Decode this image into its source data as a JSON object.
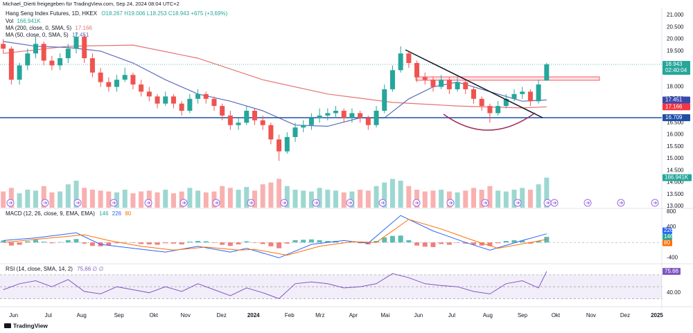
{
  "credit": "Michael_Dierti freigegeben für TradingView.com, Sep 24, 2024 08:04 UTC+2",
  "branding": "TradingView",
  "chart_data": [
    {
      "type": "candlestick",
      "title": "Hang Seng Index Futures, 1D, HKEX",
      "ohlc_text": "O18.267 H19.006 L18.253 C18.943 +675 (+3,69%)",
      "legend": [
        {
          "name": "Vol",
          "value": "166,941K"
        },
        {
          "name": "MA (200, close, 0, SMA, 5)",
          "value": "17.166"
        },
        {
          "name": "MA (50, close, 0, SMA, 5)",
          "value": "17.451"
        }
      ],
      "up_color": "#26a69a",
      "down_color": "#ef5350",
      "xlim": [
        -0.4,
        81.2
      ],
      "xticks": [
        {
          "value": 1.28,
          "label": "Jun"
        },
        {
          "value": 5.56,
          "label": "Jul"
        },
        {
          "value": 9.66,
          "label": "Aug"
        },
        {
          "value": 14.27,
          "label": "Sep"
        },
        {
          "value": 18.55,
          "label": "Okt"
        },
        {
          "value": 22.48,
          "label": "Nov"
        },
        {
          "value": 26.92,
          "label": "Dez"
        },
        {
          "value": 30.85,
          "label": "2024"
        },
        {
          "value": 35.3,
          "label": "Feb"
        },
        {
          "value": 39.06,
          "label": "Mrz"
        },
        {
          "value": 43.16,
          "label": "Apr"
        },
        {
          "value": 47.09,
          "label": "Mai"
        },
        {
          "value": 51.2,
          "label": "Jun"
        },
        {
          "value": 55.3,
          "label": "Jul"
        },
        {
          "value": 59.74,
          "label": "Aug"
        },
        {
          "value": 64.02,
          "label": "Sep"
        },
        {
          "value": 68.12,
          "label": "Okt"
        },
        {
          "value": 72.48,
          "label": "Nov"
        },
        {
          "value": 76.67,
          "label": "Dez"
        },
        {
          "value": 80.6,
          "label": "2025"
        }
      ],
      "ylim": [
        13000,
        21000
      ],
      "yticks": [
        {
          "value": 21000,
          "label": "21.000"
        },
        {
          "value": 20500,
          "label": "20.500"
        },
        {
          "value": 20000,
          "label": "20.000"
        },
        {
          "value": 19500,
          "label": "19.500"
        },
        {
          "value": 18000,
          "label": "18.000"
        },
        {
          "value": 17500,
          "label": "17.500"
        },
        {
          "value": 16500,
          "label": "16.500"
        },
        {
          "value": 16000,
          "label": "16.000"
        },
        {
          "value": 15500,
          "label": "15.500"
        },
        {
          "value": 15000,
          "label": "15.000"
        },
        {
          "value": 14500,
          "label": "14.500"
        },
        {
          "value": 14000,
          "label": "14.000"
        },
        {
          "value": 13500,
          "label": "13.500"
        },
        {
          "value": 13000,
          "label": "13.000"
        }
      ],
      "grid": false,
      "candles": [
        [
          19800,
          20000,
          19400,
          19600
        ],
        [
          19600,
          19700,
          18100,
          18300
        ],
        [
          18300,
          19000,
          18100,
          18900
        ],
        [
          18900,
          19600,
          18700,
          19400
        ],
        [
          19400,
          20100,
          19200,
          19800
        ],
        [
          19800,
          19900,
          18900,
          19100
        ],
        [
          19100,
          19300,
          18700,
          18900
        ],
        [
          18900,
          19400,
          18700,
          19200
        ],
        [
          19200,
          19800,
          19000,
          19600
        ],
        [
          19600,
          20300,
          19400,
          20100
        ],
        [
          20100,
          20200,
          19000,
          19200
        ],
        [
          19200,
          19400,
          18400,
          18600
        ],
        [
          18600,
          18800,
          18000,
          18200
        ],
        [
          18200,
          18400,
          17800,
          18000
        ],
        [
          18000,
          18500,
          17800,
          18300
        ],
        [
          18300,
          18800,
          18200,
          18500
        ],
        [
          18500,
          18600,
          17900,
          18100
        ],
        [
          18100,
          18300,
          17600,
          17800
        ],
        [
          17800,
          18000,
          17400,
          17600
        ],
        [
          17600,
          17700,
          17100,
          17300
        ],
        [
          17300,
          17800,
          17200,
          17600
        ],
        [
          17600,
          17700,
          17100,
          17300
        ],
        [
          17300,
          17400,
          16800,
          17000
        ],
        [
          17000,
          17700,
          16900,
          17500
        ],
        [
          17500,
          17900,
          17300,
          17700
        ],
        [
          17700,
          17800,
          17300,
          17500
        ],
        [
          17500,
          17600,
          17000,
          17200
        ],
        [
          17200,
          17300,
          16600,
          16800
        ],
        [
          16800,
          17000,
          16200,
          16400
        ],
        [
          16400,
          16700,
          16200,
          16500
        ],
        [
          16500,
          17200,
          16400,
          17000
        ],
        [
          17000,
          17100,
          16400,
          16600
        ],
        [
          16600,
          16800,
          16200,
          16400
        ],
        [
          16400,
          16500,
          15600,
          15800
        ],
        [
          15800,
          16000,
          14900,
          15300
        ],
        [
          15300,
          16100,
          15200,
          15900
        ],
        [
          15900,
          16500,
          15700,
          16300
        ],
        [
          16300,
          16600,
          16100,
          16400
        ],
        [
          16400,
          16900,
          16200,
          16700
        ],
        [
          16700,
          17100,
          16500,
          16800
        ],
        [
          16800,
          17100,
          16600,
          16900
        ],
        [
          16900,
          17200,
          16700,
          17000
        ],
        [
          17000,
          17100,
          16500,
          16700
        ],
        [
          16700,
          17100,
          16500,
          16900
        ],
        [
          16900,
          17000,
          16500,
          16700
        ],
        [
          16700,
          16800,
          16200,
          16400
        ],
        [
          16400,
          17200,
          16300,
          17000
        ],
        [
          17000,
          18100,
          16900,
          17900
        ],
        [
          17900,
          18900,
          17800,
          18700
        ],
        [
          18700,
          19700,
          18600,
          19400
        ],
        [
          19400,
          19500,
          18800,
          19000
        ],
        [
          19000,
          19100,
          18200,
          18400
        ],
        [
          18400,
          18600,
          18100,
          18300
        ],
        [
          18300,
          18400,
          17800,
          18000
        ],
        [
          18000,
          18500,
          17900,
          18300
        ],
        [
          18300,
          18400,
          17700,
          17900
        ],
        [
          17900,
          18400,
          17800,
          18200
        ],
        [
          18200,
          18300,
          17700,
          17900
        ],
        [
          17900,
          18000,
          17300,
          17500
        ],
        [
          17500,
          17600,
          17000,
          17200
        ],
        [
          17200,
          17300,
          16500,
          16900
        ],
        [
          16900,
          17400,
          16800,
          17200
        ],
        [
          17200,
          17700,
          17100,
          17500
        ],
        [
          17500,
          17900,
          17400,
          17700
        ],
        [
          17700,
          18000,
          17500,
          17800
        ],
        [
          17800,
          17900,
          17200,
          17400
        ],
        [
          17400,
          18300,
          17300,
          18100
        ],
        [
          18267,
          19006,
          18253,
          18943
        ]
      ],
      "vlim": [
        0,
        250000
      ],
      "volume": [
        90000,
        110000,
        80000,
        100000,
        95000,
        120000,
        85000,
        90000,
        130000,
        150000,
        110000,
        100000,
        95000,
        90000,
        85000,
        100000,
        80000,
        90000,
        95000,
        85000,
        100000,
        80000,
        90000,
        110000,
        95000,
        85000,
        90000,
        120000,
        110000,
        100000,
        115000,
        95000,
        130000,
        140000,
        160000,
        120000,
        100000,
        95000,
        90000,
        110000,
        100000,
        95000,
        85000,
        90000,
        100000,
        95000,
        120000,
        140000,
        160000,
        150000,
        120000,
        100000,
        90000,
        95000,
        100000,
        90000,
        85000,
        95000,
        110000,
        100000,
        120000,
        95000,
        90000,
        100000,
        110000,
        100000,
        130000,
        166941
      ],
      "volume_label": {
        "value": 166941,
        "label": "166.941K"
      },
      "series": [
        {
          "color": "#e57373",
          "x": [
            0,
            8,
            16,
            24,
            32,
            40,
            48,
            56,
            64,
            67
          ],
          "values": [
            19400,
            19700,
            19750,
            19200,
            18300,
            17700,
            17350,
            17200,
            17120,
            17166
          ]
        },
        {
          "color": "#5c6bc0",
          "x": [
            0,
            4,
            8,
            12,
            16,
            20,
            24,
            28,
            32,
            36,
            40,
            44,
            47,
            50,
            53,
            56,
            60,
            64,
            67
          ],
          "values": [
            19900,
            19700,
            19650,
            19500,
            19000,
            18300,
            17700,
            17400,
            17000,
            16400,
            16350,
            16700,
            16700,
            17500,
            18000,
            18200,
            17800,
            17400,
            17451
          ]
        }
      ],
      "support": {
        "value": 16709,
        "label": "16.709",
        "color": "#1e4fa8"
      },
      "price_labels": [
        {
          "value": 18943,
          "label": "18.943",
          "color": "#26a69a"
        },
        {
          "value": 17451,
          "label": "17.451",
          "color": "#3949ab"
        },
        {
          "value": 17166,
          "label": "17.166",
          "color": "#f23645"
        }
      ],
      "countdown": "02:40:04"
    },
    {
      "type": "macd",
      "title": "MACD (12, 26, close, 9, EMA, EMA)",
      "ylim": [
        -500,
        850
      ],
      "yticks": [
        800,
        400,
        -400
      ],
      "histogram": {
        "up_color": "#26a69a",
        "down_color": "#ef5350",
        "values": [
          50,
          -80,
          -60,
          30,
          70,
          20,
          -20,
          10,
          60,
          90,
          -30,
          -90,
          -100,
          -70,
          -20,
          10,
          -10,
          -40,
          -50,
          -60,
          -20,
          -30,
          -50,
          20,
          40,
          30,
          -10,
          -60,
          -90,
          -50,
          30,
          -10,
          -40,
          -100,
          -150,
          -30,
          60,
          70,
          80,
          60,
          40,
          40,
          -10,
          10,
          -20,
          -50,
          40,
          130,
          170,
          180,
          60,
          -80,
          -110,
          -120,
          -40,
          -60,
          -10,
          -30,
          -60,
          -80,
          -90,
          -20,
          40,
          60,
          50,
          -30,
          40,
          146
        ]
      },
      "series": [
        {
          "color": "#2962ff",
          "x": [
            0,
            4,
            9,
            12,
            16,
            20,
            24,
            28,
            30,
            34,
            38,
            42,
            45,
            49,
            53,
            57,
            60,
            64,
            67
          ],
          "values": [
            50,
            120,
            250,
            -50,
            -150,
            -250,
            -100,
            -250,
            -150,
            -400,
            -50,
            50,
            -20,
            700,
            300,
            0,
            -200,
            50,
            226
          ]
        },
        {
          "color": "#ff6d00",
          "x": [
            0,
            4,
            10,
            13,
            17,
            21,
            25,
            29,
            31,
            35,
            39,
            43,
            46,
            50,
            54,
            58,
            61,
            65,
            67
          ],
          "values": [
            0,
            80,
            200,
            50,
            -100,
            -200,
            -120,
            -200,
            -180,
            -330,
            -100,
            20,
            0,
            600,
            350,
            50,
            -150,
            0,
            80
          ]
        }
      ]
    },
    {
      "type": "line",
      "title": "RSI (14, close, SMA, 14, 2)",
      "current_text": "75,66 ∅ ∅",
      "ylim": [
        20,
        85
      ],
      "yticks": [
        {
          "value": 40,
          "label": "40.00"
        }
      ],
      "levels": [
        70,
        50,
        30
      ],
      "color": "#7e57c2",
      "x": [
        0,
        2,
        4,
        6,
        8,
        10,
        12,
        14,
        16,
        18,
        20,
        22,
        24,
        26,
        28,
        30,
        32,
        34,
        36,
        38,
        40,
        42,
        44,
        46,
        48,
        50,
        52,
        54,
        56,
        58,
        60,
        62,
        64,
        66,
        67
      ],
      "values": [
        45,
        55,
        60,
        50,
        62,
        42,
        38,
        50,
        45,
        40,
        50,
        42,
        55,
        45,
        35,
        48,
        40,
        30,
        55,
        58,
        55,
        48,
        50,
        55,
        72,
        65,
        55,
        52,
        50,
        42,
        38,
        55,
        60,
        48,
        75.66
      ]
    }
  ]
}
